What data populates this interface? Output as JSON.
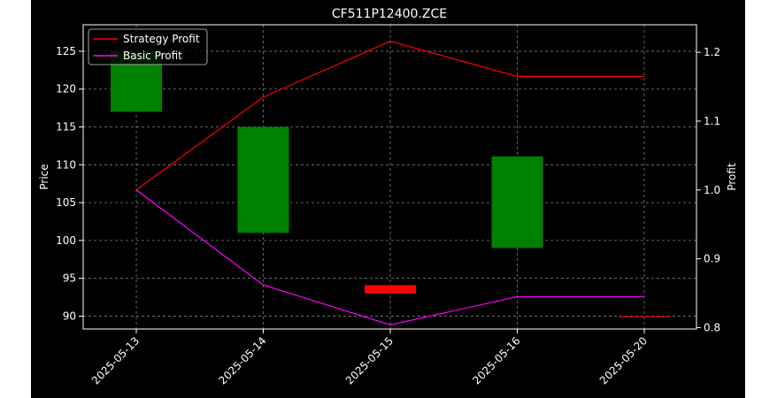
{
  "chart_data": {
    "type": "candlestick",
    "title": "CF511P12400.ZCE",
    "xlabel": "",
    "ylabel_left": "Price",
    "ylabel_right": "Profit",
    "categories": [
      "2025-05-13",
      "2025-05-14",
      "2025-05-15",
      "2025-05-16",
      "2025-05-20"
    ],
    "ylim_left": [
      88.3,
      128.5
    ],
    "ylim_right": [
      0.798,
      1.24
    ],
    "yticks_left": [
      90,
      95,
      100,
      105,
      110,
      115,
      120,
      125
    ],
    "yticks_right": [
      0.8,
      0.9,
      1.0,
      1.1,
      1.2
    ],
    "grid": true,
    "legend_position": "top-left",
    "candles": [
      {
        "x": "2025-05-13",
        "open": 117.0,
        "close": 125.0,
        "color": "#008000"
      },
      {
        "x": "2025-05-14",
        "open": 101.0,
        "close": 115.0,
        "color": "#008000"
      },
      {
        "x": "2025-05-15",
        "open": 94.1,
        "close": 93.0,
        "color": "#ff0000"
      },
      {
        "x": "2025-05-16",
        "open": 99.0,
        "close": 111.1,
        "color": "#008000"
      },
      {
        "x": "2025-05-20",
        "open": 90.0,
        "close": 90.0,
        "color": "#ff0000"
      }
    ],
    "series": [
      {
        "name": "Strategy Profit",
        "color": "#ff0000",
        "axis": "right",
        "values": [
          1.0,
          1.135,
          1.216,
          1.165,
          1.165
        ]
      },
      {
        "name": "Basic Profit",
        "color": "#ff00ff",
        "axis": "right",
        "values": [
          1.0,
          0.862,
          0.804,
          0.845,
          0.845
        ]
      }
    ],
    "colors": {
      "background": "#000000",
      "axes": "#ffffff",
      "grid": "#808080"
    }
  }
}
